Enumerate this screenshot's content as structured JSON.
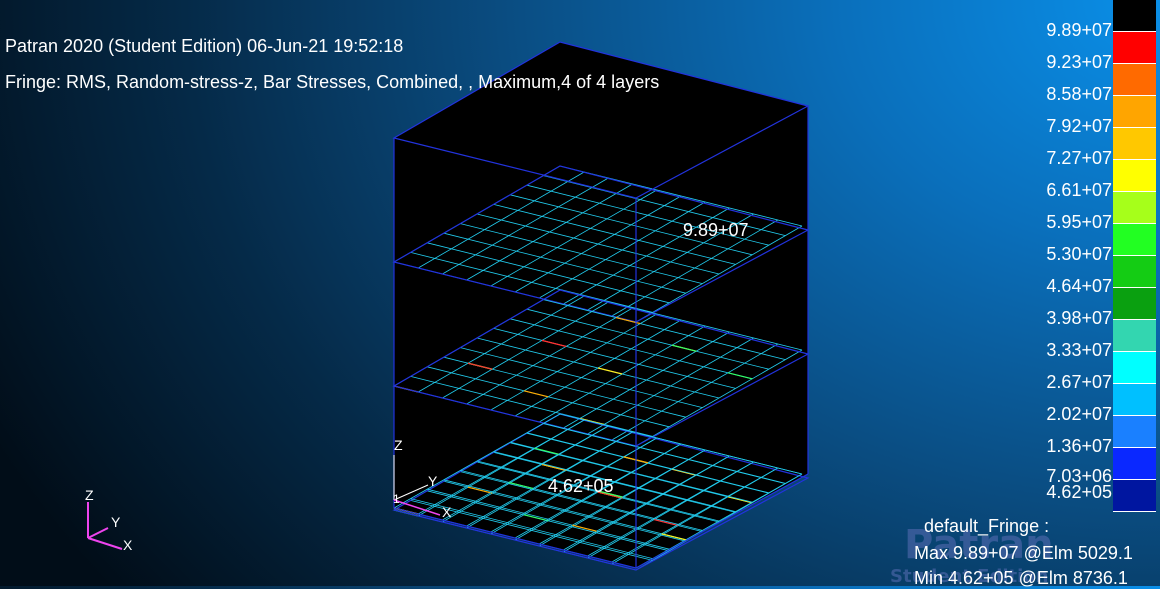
{
  "header": {
    "title": "Patran 2020  (Student Edition) 06-Jun-21 19:52:18",
    "fringe_desc": "Fringe: RMS, Random-stress-z, Bar Stresses, Combined, , Maximum,4 of 4 layers"
  },
  "legend": {
    "top_marker": "|",
    "labels": [
      "9.89+07",
      "9.23+07",
      "8.58+07",
      "7.92+07",
      "7.27+07",
      "6.61+07",
      "5.95+07",
      "5.30+07",
      "4.64+07",
      "3.98+07",
      "3.33+07",
      "2.67+07",
      "2.02+07",
      "1.36+07",
      "7.03+06",
      "4.62+05"
    ],
    "colors": [
      "#000000",
      "#ff0000",
      "#ff6a00",
      "#ffa500",
      "#ffc800",
      "#ffff00",
      "#a6ff1a",
      "#22ff22",
      "#14cc14",
      "#0aa010",
      "#33d6b0",
      "#00ffff",
      "#00c0ff",
      "#1a80ff",
      "#0a28ff",
      "#0016a0"
    ]
  },
  "annotations": {
    "max_marker": "9.89+07",
    "min_marker": "4.62+05"
  },
  "triad": {
    "main": {
      "z": "Z",
      "y": "Y",
      "x": "X"
    },
    "model": {
      "z": "Z",
      "y": "Y",
      "x": "X",
      "origin": "1"
    }
  },
  "summary": {
    "title": "default_Fringe :",
    "max": "Max 9.89+07 @Elm 5029.1",
    "min": "Min 4.62+05 @Elm 8736.1"
  },
  "watermark": {
    "logo": "Patran",
    "sub": "Student Edition"
  },
  "colors": {
    "wire": "#2233dd",
    "mesh": "#22ccee",
    "face": "#000000"
  }
}
